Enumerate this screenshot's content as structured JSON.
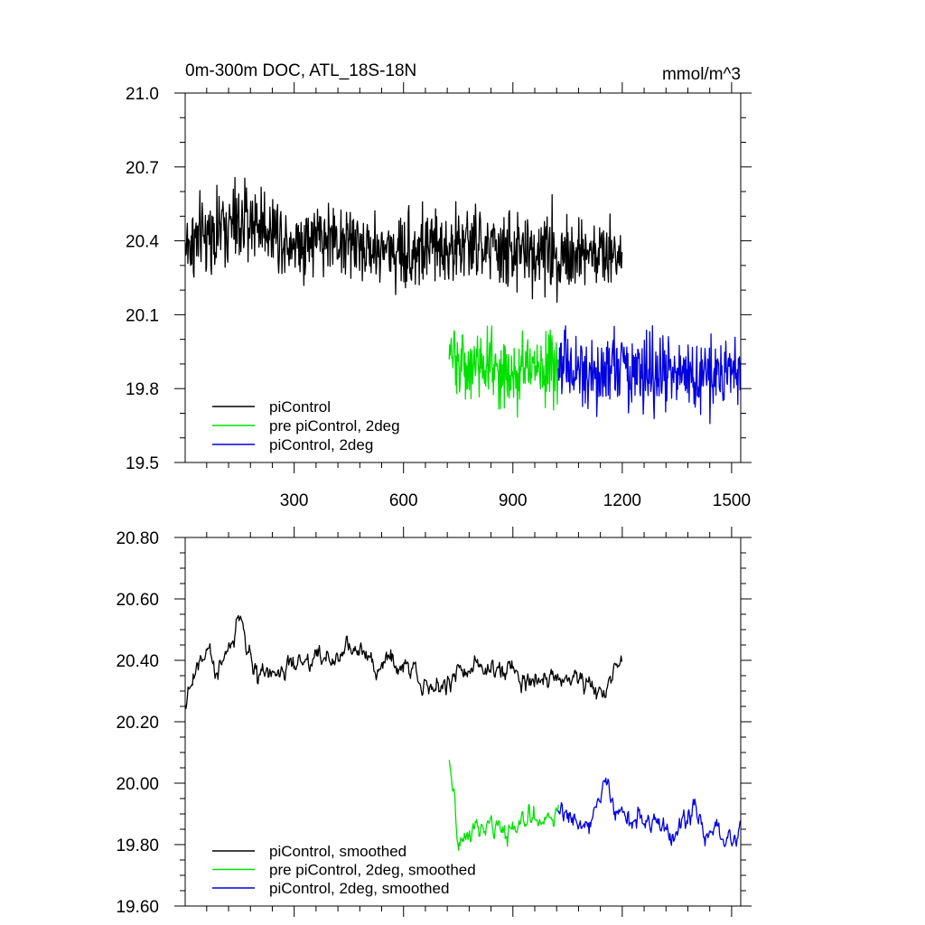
{
  "chart_data": [
    {
      "type": "line",
      "title": "0m-300m DOC, ATL_18S-18N",
      "units": "mmol/m^3",
      "xlabel": "",
      "ylabel": "",
      "xlim": [
        1,
        1525
      ],
      "ylim": [
        19.5,
        21.0
      ],
      "x_ticks": [
        300,
        600,
        900,
        1200,
        1500
      ],
      "x_tick_labels": [
        "300",
        "600",
        "900",
        "1200",
        "1500"
      ],
      "y_ticks": [
        19.5,
        19.8,
        20.1,
        20.4,
        20.7,
        21.0
      ],
      "y_tick_labels": [
        "19.5",
        "19.8",
        "20.1",
        "20.4",
        "20.7",
        "21.0"
      ],
      "grid": false,
      "legend_position": "bottom-left",
      "series": [
        {
          "name": "piControl",
          "color": "#000000",
          "x_start": 1,
          "x_end": 1200,
          "x": [
            1,
            100,
            200,
            300,
            400,
            500,
            600,
            700,
            800,
            900,
            1000,
            1100,
            1200
          ],
          "values": [
            20.38,
            20.45,
            20.48,
            20.4,
            20.42,
            20.37,
            20.36,
            20.38,
            20.38,
            20.35,
            20.36,
            20.34,
            20.35
          ]
        },
        {
          "name": "pre piControl, 2deg",
          "color": "#00e000",
          "x_start": 725,
          "x_end": 1025,
          "x": [
            725,
            800,
            900,
            1000,
            1025
          ],
          "values": [
            19.92,
            19.9,
            19.88,
            19.9,
            19.92
          ]
        },
        {
          "name": "piControl, 2deg",
          "color": "#0000e0",
          "x_start": 1025,
          "x_end": 1525,
          "x": [
            1025,
            1100,
            1200,
            1300,
            1400,
            1500,
            1525
          ],
          "values": [
            19.9,
            19.86,
            19.88,
            19.86,
            19.84,
            19.84,
            19.86
          ]
        }
      ]
    },
    {
      "type": "line",
      "title": "",
      "xlabel": "",
      "ylabel": "",
      "xlim": [
        1,
        1525
      ],
      "ylim": [
        19.6,
        20.8
      ],
      "x_ticks": [
        300,
        600,
        900,
        1200,
        1500
      ],
      "y_ticks": [
        19.6,
        19.8,
        20.0,
        20.2,
        20.4,
        20.6,
        20.8
      ],
      "y_tick_labels": [
        "19.60",
        "19.80",
        "20.00",
        "20.20",
        "20.40",
        "20.60",
        "20.80"
      ],
      "grid": false,
      "legend_position": "bottom-left",
      "series": [
        {
          "name": "piControl, smoothed",
          "color": "#000000",
          "x_start": 1,
          "x_end": 1200,
          "x": [
            1,
            50,
            100,
            150,
            200,
            250,
            300,
            350,
            400,
            450,
            500,
            550,
            600,
            650,
            700,
            750,
            800,
            850,
            900,
            950,
            1000,
            1050,
            1100,
            1150,
            1200
          ],
          "values": [
            20.28,
            20.42,
            20.38,
            20.55,
            20.35,
            20.38,
            20.36,
            20.42,
            20.4,
            20.44,
            20.42,
            20.38,
            20.4,
            20.34,
            20.3,
            20.36,
            20.4,
            20.34,
            20.38,
            20.32,
            20.34,
            20.33,
            20.35,
            20.3,
            20.42
          ]
        },
        {
          "name": "pre piControl, 2deg, smoothed",
          "color": "#00e000",
          "x_start": 725,
          "x_end": 1025,
          "x": [
            725,
            750,
            800,
            850,
            900,
            950,
            1000,
            1025
          ],
          "values": [
            20.04,
            19.8,
            19.88,
            19.84,
            19.86,
            19.88,
            19.9,
            19.92
          ]
        },
        {
          "name": "piControl, 2deg, smoothed",
          "color": "#0000e0",
          "x_start": 1025,
          "x_end": 1525,
          "x": [
            1025,
            1100,
            1150,
            1200,
            1250,
            1300,
            1350,
            1400,
            1450,
            1500,
            1525
          ],
          "values": [
            19.92,
            19.86,
            20.0,
            19.88,
            19.86,
            19.88,
            19.86,
            19.9,
            19.84,
            19.82,
            19.86
          ]
        }
      ]
    }
  ]
}
